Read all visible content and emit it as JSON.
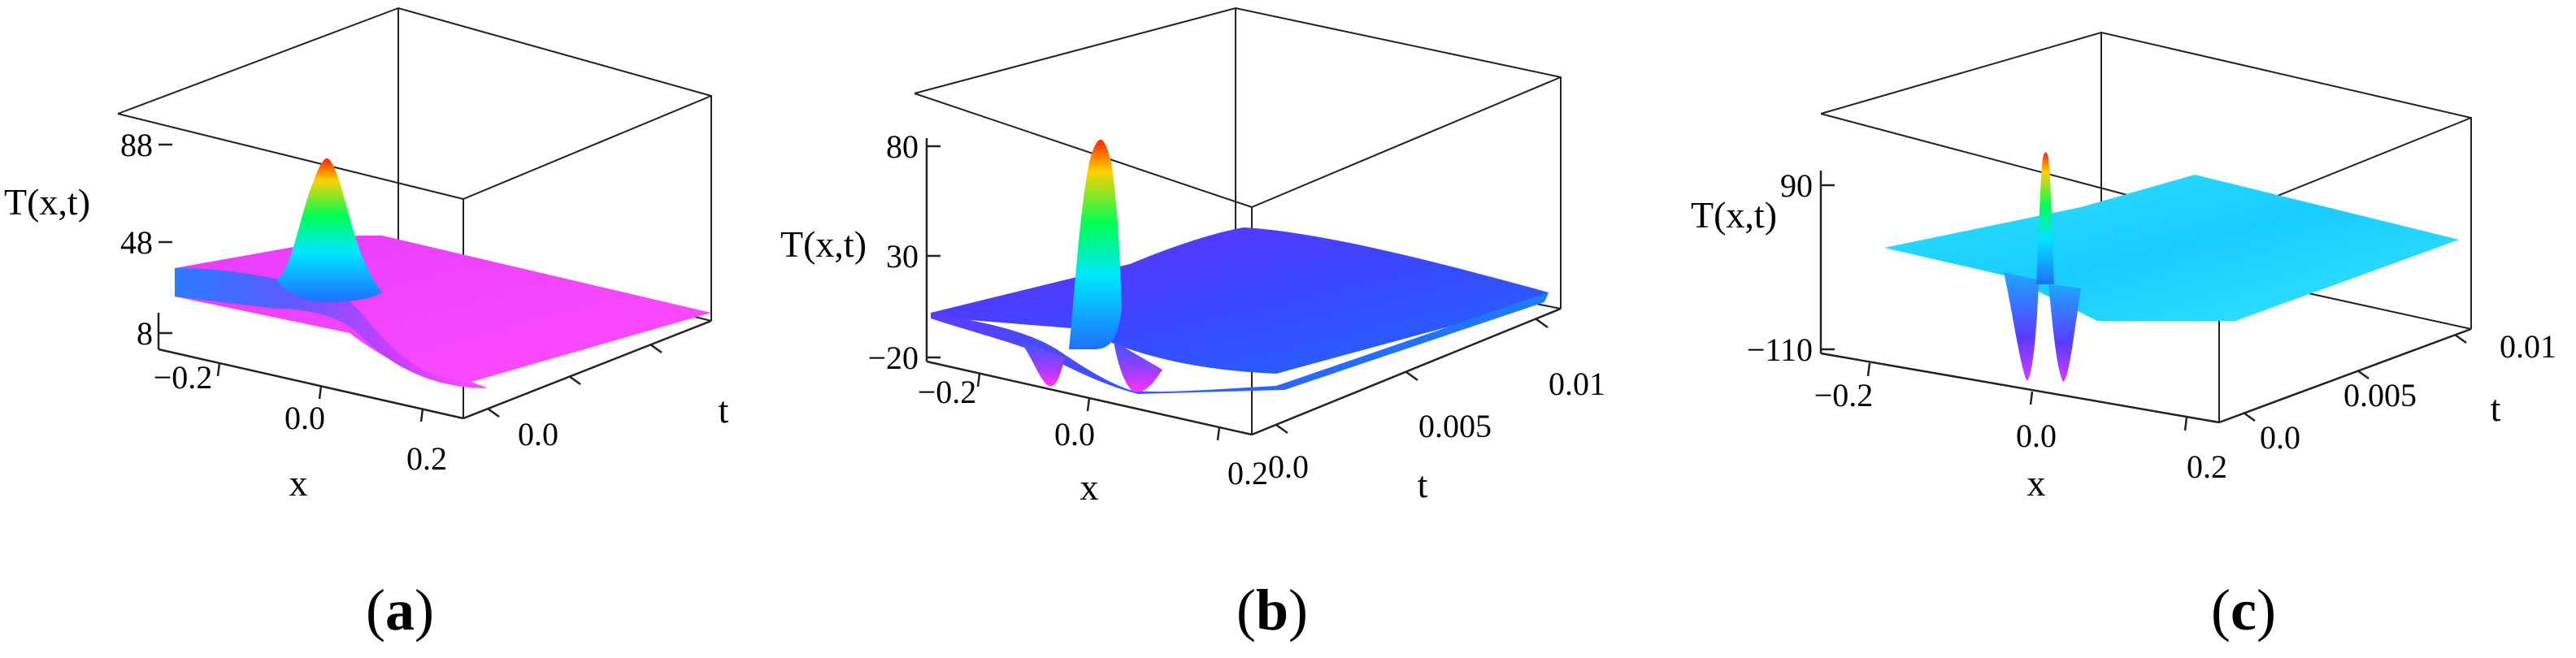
{
  "panels": [
    {
      "label": "a",
      "chart_data": {
        "type": "surface3d",
        "xlabel": "x",
        "ylabel": "t",
        "zlabel": "T(x,t)",
        "x_ticks": [
          "−0.2",
          "0.0",
          "0.2"
        ],
        "t_ticks": [
          "0.0"
        ],
        "z_ticks": [
          "88",
          "48",
          "8"
        ],
        "xlim": [
          -0.25,
          0.25
        ],
        "tlim": [
          0,
          0.012
        ],
        "zlim": [
          8,
          88
        ],
        "peak": {
          "x": -0.05,
          "t": 0.0,
          "value": 88
        },
        "colormap": "rainbow",
        "colors": [
          "#ff2a00",
          "#00ff55",
          "#0088ff",
          "#ff33ff"
        ]
      }
    },
    {
      "label": "b",
      "chart_data": {
        "type": "surface3d",
        "xlabel": "x",
        "ylabel": "t",
        "zlabel": "T(x,t)",
        "x_ticks": [
          "−0.2",
          "0.0",
          "0.2"
        ],
        "t_ticks": [
          "0.0",
          "0.005",
          "0.01"
        ],
        "z_ticks": [
          "80",
          "30",
          "−20"
        ],
        "xlim": [
          -0.25,
          0.25
        ],
        "tlim": [
          0,
          0.011
        ],
        "zlim": [
          -20,
          80
        ],
        "peak": {
          "x": -0.02,
          "t": 0.0,
          "value": 80
        },
        "colormap": "rainbow",
        "colors": [
          "#ff2a00",
          "#00ff55",
          "#2f4fff",
          "#cc33ff"
        ]
      }
    },
    {
      "label": "c",
      "chart_data": {
        "type": "surface3d",
        "xlabel": "x",
        "ylabel": "t",
        "zlabel": "T(x,t)",
        "x_ticks": [
          "−0.2",
          "0.0",
          "0.2"
        ],
        "t_ticks": [
          "0.0",
          "0.005",
          "0.01"
        ],
        "z_ticks": [
          "90",
          "−110"
        ],
        "xlim": [
          -0.25,
          0.25
        ],
        "tlim": [
          0,
          0.011
        ],
        "zlim": [
          -110,
          90
        ],
        "peak": {
          "x": 0.0,
          "t": 0.0,
          "value": 90
        },
        "colormap": "rainbow",
        "colors": [
          "#ff2a00",
          "#00ff55",
          "#22ccff",
          "#cc33ff"
        ]
      }
    }
  ]
}
